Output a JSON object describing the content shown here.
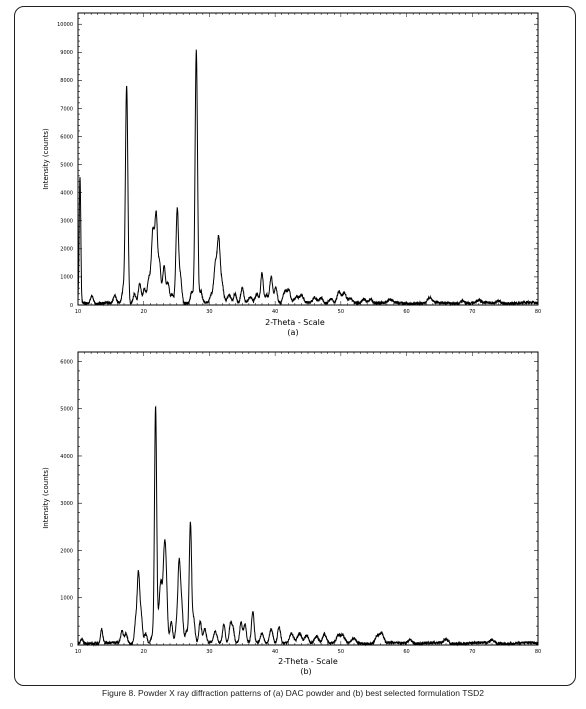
{
  "caption": "Figure 8. Powder X ray diffraction patterns of (a) DAC powder and (b) best selected formulation TSD2",
  "colors": {
    "line": "#000000",
    "frame": "#222222"
  },
  "chart_data": [
    {
      "type": "line",
      "panel_label": "(a)",
      "xlabel": "2-Theta - Scale",
      "ylabel": "Intensity (counts)",
      "xlim": [
        10,
        80
      ],
      "ylim": [
        0,
        10400
      ],
      "x_ticks": [
        10,
        20,
        30,
        40,
        50,
        60,
        70,
        80
      ],
      "y_ticks": [
        0,
        1000,
        2000,
        3000,
        4000,
        5000,
        6000,
        7000,
        8000,
        9000,
        10000
      ],
      "baseline": 70,
      "peaks": [
        [
          10.3,
          4500,
          0.12
        ],
        [
          12.1,
          300,
          0.2
        ],
        [
          15.6,
          250,
          0.2
        ],
        [
          16.9,
          500,
          0.2
        ],
        [
          17.4,
          7750,
          0.18
        ],
        [
          18.6,
          350,
          0.2
        ],
        [
          19.4,
          700,
          0.22
        ],
        [
          20.1,
          500,
          0.2
        ],
        [
          20.8,
          900,
          0.25
        ],
        [
          21.4,
          2500,
          0.22
        ],
        [
          21.9,
          3000,
          0.2
        ],
        [
          22.4,
          1400,
          0.2
        ],
        [
          23.1,
          1300,
          0.22
        ],
        [
          23.7,
          700,
          0.2
        ],
        [
          24.3,
          300,
          0.2
        ],
        [
          25.1,
          3350,
          0.2
        ],
        [
          25.6,
          900,
          0.2
        ],
        [
          27.3,
          400,
          0.2
        ],
        [
          28.0,
          9000,
          0.18
        ],
        [
          28.7,
          400,
          0.2
        ],
        [
          30.3,
          300,
          0.25
        ],
        [
          30.9,
          1300,
          0.22
        ],
        [
          31.4,
          2200,
          0.22
        ],
        [
          31.9,
          700,
          0.25
        ],
        [
          33.0,
          300,
          0.3
        ],
        [
          33.9,
          350,
          0.2
        ],
        [
          35.0,
          550,
          0.22
        ],
        [
          36.2,
          200,
          0.25
        ],
        [
          37.2,
          300,
          0.25
        ],
        [
          38.0,
          1050,
          0.2
        ],
        [
          38.7,
          300,
          0.2
        ],
        [
          39.4,
          950,
          0.22
        ],
        [
          40.1,
          550,
          0.22
        ],
        [
          41.5,
          400,
          0.3
        ],
        [
          42.1,
          400,
          0.25
        ],
        [
          43.2,
          200,
          0.3
        ],
        [
          44.0,
          250,
          0.3
        ],
        [
          46.0,
          200,
          0.3
        ],
        [
          47.0,
          200,
          0.3
        ],
        [
          48.5,
          150,
          0.3
        ],
        [
          49.7,
          400,
          0.25
        ],
        [
          50.5,
          350,
          0.3
        ],
        [
          51.5,
          150,
          0.3
        ],
        [
          53.5,
          150,
          0.3
        ],
        [
          54.5,
          150,
          0.3
        ],
        [
          57.5,
          120,
          0.3
        ],
        [
          63.5,
          180,
          0.3
        ],
        [
          68.5,
          100,
          0.3
        ],
        [
          71.0,
          100,
          0.3
        ],
        [
          74.0,
          90,
          0.3
        ]
      ]
    },
    {
      "type": "line",
      "panel_label": "(b)",
      "xlabel": "2-Theta - Scale",
      "ylabel": "Intensity (counts)",
      "xlim": [
        10,
        80
      ],
      "ylim": [
        0,
        6200
      ],
      "x_ticks": [
        10,
        20,
        30,
        40,
        50,
        60,
        70,
        80
      ],
      "y_ticks": [
        0,
        1000,
        2000,
        3000,
        4000,
        5000,
        6000
      ],
      "baseline": 40,
      "peaks": [
        [
          10.6,
          100,
          0.15
        ],
        [
          13.6,
          300,
          0.18
        ],
        [
          16.7,
          250,
          0.2
        ],
        [
          17.3,
          200,
          0.2
        ],
        [
          18.8,
          500,
          0.2
        ],
        [
          19.2,
          1400,
          0.18
        ],
        [
          19.6,
          600,
          0.2
        ],
        [
          20.3,
          200,
          0.2
        ],
        [
          21.3,
          150,
          0.2
        ],
        [
          21.8,
          4950,
          0.16
        ],
        [
          22.2,
          400,
          0.2
        ],
        [
          22.6,
          1200,
          0.2
        ],
        [
          23.1,
          1550,
          0.2
        ],
        [
          23.4,
          1300,
          0.2
        ],
        [
          24.2,
          450,
          0.2
        ],
        [
          25.0,
          350,
          0.2
        ],
        [
          25.4,
          1650,
          0.2
        ],
        [
          25.8,
          700,
          0.2
        ],
        [
          26.5,
          250,
          0.2
        ],
        [
          27.1,
          2550,
          0.18
        ],
        [
          27.6,
          500,
          0.2
        ],
        [
          28.6,
          450,
          0.2
        ],
        [
          29.3,
          300,
          0.2
        ],
        [
          30.9,
          250,
          0.25
        ],
        [
          32.2,
          400,
          0.2
        ],
        [
          33.2,
          400,
          0.2
        ],
        [
          33.6,
          300,
          0.2
        ],
        [
          34.8,
          450,
          0.2
        ],
        [
          35.4,
          400,
          0.2
        ],
        [
          36.6,
          650,
          0.2
        ],
        [
          38.0,
          200,
          0.25
        ],
        [
          39.4,
          300,
          0.25
        ],
        [
          40.6,
          350,
          0.22
        ],
        [
          42.5,
          200,
          0.3
        ],
        [
          43.7,
          200,
          0.3
        ],
        [
          44.8,
          150,
          0.3
        ],
        [
          46.3,
          150,
          0.3
        ],
        [
          47.5,
          200,
          0.3
        ],
        [
          49.6,
          150,
          0.3
        ],
        [
          50.3,
          150,
          0.3
        ],
        [
          52.0,
          100,
          0.3
        ],
        [
          55.5,
          150,
          0.3
        ],
        [
          56.2,
          200,
          0.3
        ],
        [
          60.5,
          80,
          0.3
        ],
        [
          66.0,
          80,
          0.3
        ],
        [
          73.0,
          70,
          0.3
        ]
      ]
    }
  ]
}
